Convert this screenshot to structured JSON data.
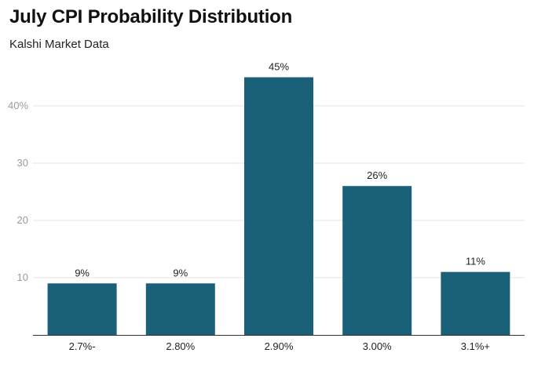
{
  "header": {
    "title": "July CPI Probability Distribution",
    "subtitle": "Kalshi Market Data"
  },
  "chart_data": {
    "type": "bar",
    "title": "July CPI Probability Distribution",
    "subtitle": "Kalshi Market Data",
    "categories": [
      "2.7%-",
      "2.80%",
      "2.90%",
      "3.00%",
      "3.1%+"
    ],
    "values": [
      9,
      9,
      45,
      26,
      11
    ],
    "data_labels": [
      "9%",
      "9%",
      "45%",
      "26%",
      "11%"
    ],
    "y_ticks": [
      10,
      20,
      30,
      40
    ],
    "y_tick_labels": [
      "10",
      "20",
      "30",
      "40%"
    ],
    "ylim": [
      0,
      50
    ],
    "grid": true,
    "legend": "none",
    "bar_color": "#1a6078",
    "xlabel": "",
    "ylabel": ""
  }
}
